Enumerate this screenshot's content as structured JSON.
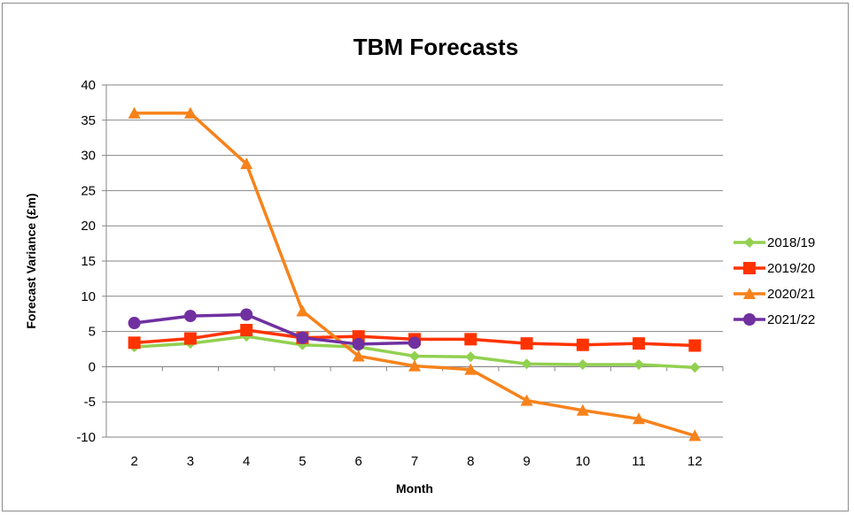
{
  "chart_data": {
    "type": "line",
    "title": "TBM Forecasts",
    "xlabel": "Month",
    "ylabel": "Forecast Variance (£m)",
    "x": [
      2,
      3,
      4,
      5,
      6,
      7,
      8,
      9,
      10,
      11,
      12
    ],
    "xlim": [
      1.5,
      12.5
    ],
    "ylim": [
      -10,
      40
    ],
    "yticks": [
      -10,
      -5,
      0,
      5,
      10,
      15,
      20,
      25,
      30,
      35,
      40
    ],
    "grid": true,
    "legend": "right",
    "series": [
      {
        "name": "2018/19",
        "color": "#92D050",
        "marker": "diamond",
        "values": [
          2.8,
          3.3,
          4.3,
          3.1,
          2.8,
          1.5,
          1.4,
          0.4,
          0.3,
          0.3,
          -0.1
        ]
      },
      {
        "name": "2019/20",
        "color": "#FF3300",
        "marker": "square",
        "values": [
          3.4,
          4.0,
          5.2,
          4.1,
          4.3,
          3.9,
          3.9,
          3.3,
          3.1,
          3.3,
          3.0
        ]
      },
      {
        "name": "2020/21",
        "color": "#F7821B",
        "marker": "triangle",
        "values": [
          36,
          36,
          28.8,
          7.9,
          1.5,
          0.1,
          -0.4,
          -4.8,
          -6.2,
          -7.4,
          -9.8
        ]
      },
      {
        "name": "2021/22",
        "color": "#7030A0",
        "marker": "circle",
        "values": [
          6.2,
          7.2,
          7.4,
          4.1,
          3.2,
          3.4,
          null,
          null,
          null,
          null,
          null
        ]
      }
    ]
  }
}
